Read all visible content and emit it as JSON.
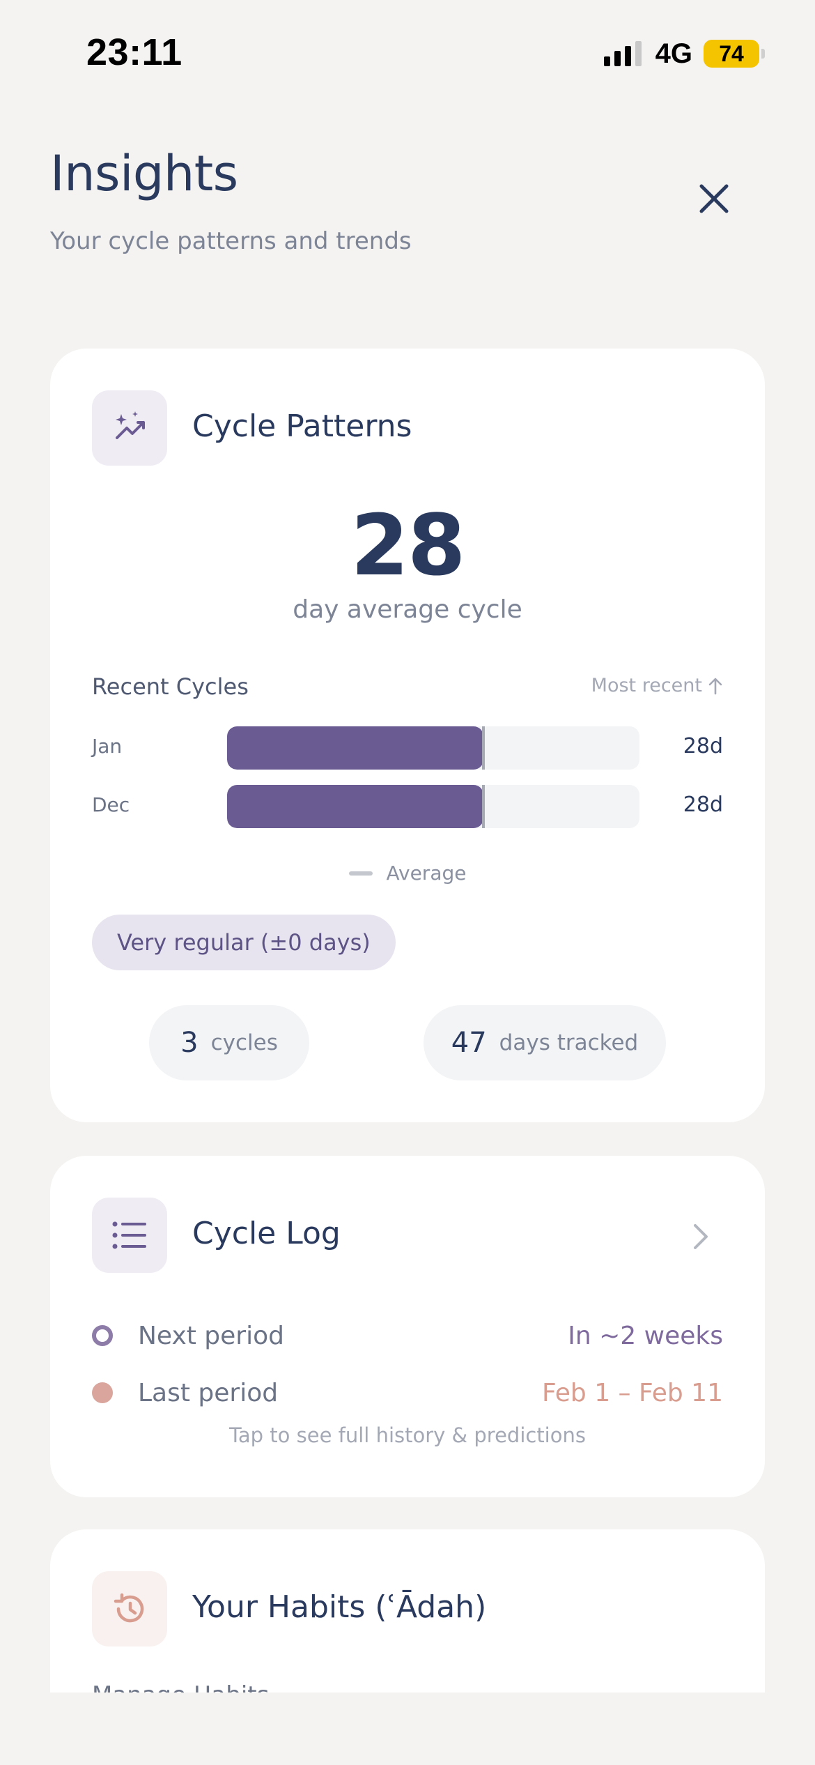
{
  "status_bar": {
    "time": "23:11",
    "network": "4G",
    "battery": "74"
  },
  "header": {
    "title": "Insights",
    "subtitle": "Your cycle patterns and trends",
    "close_icon": "close-icon"
  },
  "cycle_patterns": {
    "icon": "sparkle-chart-icon",
    "title": "Cycle Patterns",
    "average_value": "28",
    "average_caption": "day average cycle",
    "recent_label": "Recent Cycles",
    "sort_label": "Most recent",
    "sort_icon": "arrow-up-icon",
    "cycles": [
      {
        "month": "Jan",
        "value": "28d",
        "days": 28
      },
      {
        "month": "Dec",
        "value": "28d",
        "days": 28
      }
    ],
    "average_days": 28,
    "legend_label": "Average",
    "regularity_badge": "Very regular (±0 days)",
    "stats": [
      {
        "number": "3",
        "unit": "cycles"
      },
      {
        "number": "47",
        "unit": "days tracked"
      }
    ]
  },
  "cycle_log": {
    "icon": "list-icon",
    "title": "Cycle Log",
    "chevron_icon": "chevron-right-icon",
    "rows": [
      {
        "label": "Next period",
        "value": "In ~2 weeks"
      },
      {
        "label": "Last period",
        "value": "Feb 1 – Feb 11"
      }
    ],
    "hint": "Tap to see full history & predictions"
  },
  "habits": {
    "icon": "history-icon",
    "title": "Your Habits (ʿĀdah)",
    "partial_label": "Manage Habits"
  },
  "colors": {
    "accent_purple": "#6b5b93",
    "coral": "#d99d8f",
    "navy_text": "#2a3a5e",
    "background": "#f4f3f1"
  }
}
